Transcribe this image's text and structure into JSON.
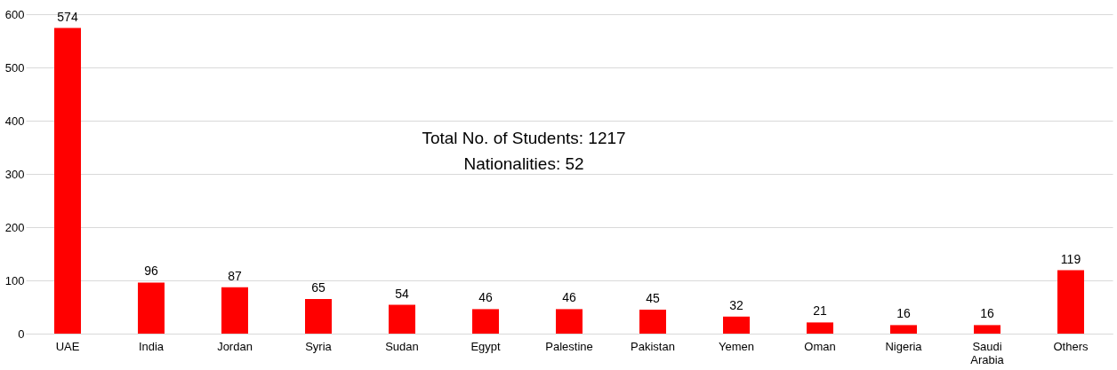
{
  "chart_data": {
    "type": "bar",
    "categories": [
      "UAE",
      "India",
      "Jordan",
      "Syria",
      "Sudan",
      "Egypt",
      "Palestine",
      "Pakistan",
      "Yemen",
      "Oman",
      "Nigeria",
      "Saudi Arabia",
      "Others"
    ],
    "values": [
      574,
      96,
      87,
      65,
      54,
      46,
      46,
      45,
      32,
      21,
      16,
      16,
      119
    ],
    "color": "#ff0000",
    "ylim": [
      0,
      600
    ],
    "yticks": [
      0,
      100,
      200,
      300,
      400,
      500,
      600
    ],
    "grid": "y",
    "data_labels": true,
    "annotations": [
      "Total No. of Students: 1217",
      "Nationalities: 52"
    ]
  }
}
